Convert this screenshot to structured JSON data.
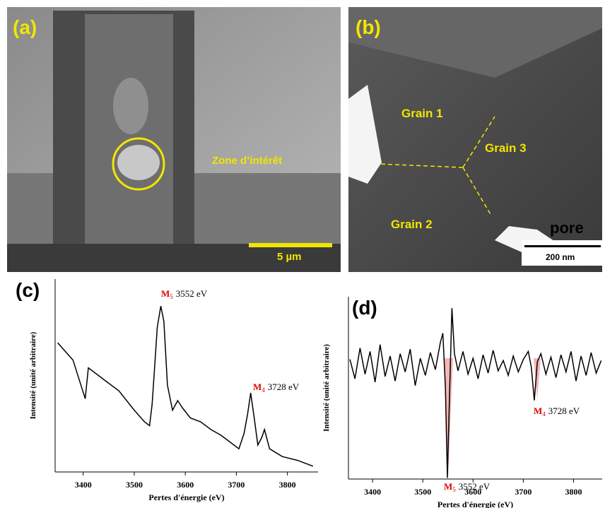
{
  "images": [
    {
      "label": "(a)",
      "annotations": [
        "Zone d’intérêt",
        "5 µm"
      ]
    },
    {
      "label": "(b)",
      "annotations": [
        "Grain 1",
        "Grain 3",
        "Grain 2",
        "pore",
        "200 nm"
      ]
    }
  ],
  "chart_data": [
    {
      "type": "line",
      "label": "(c)",
      "x_label": "Pertes d'énergie (eV)",
      "y_label": "Intensité (unité arbitraire)",
      "xlim": [
        3345,
        3860
      ],
      "xticks": [
        3400,
        3500,
        3600,
        3700,
        3800
      ],
      "ylim": [
        0,
        100
      ],
      "color": "#000000",
      "x": [
        3350,
        3380,
        3404,
        3410,
        3440,
        3470,
        3500,
        3520,
        3530,
        3535,
        3540,
        3545,
        3552,
        3558,
        3565,
        3575,
        3585,
        3595,
        3610,
        3630,
        3650,
        3670,
        3690,
        3705,
        3715,
        3722,
        3728,
        3735,
        3742,
        3750,
        3755,
        3765,
        3790,
        3820,
        3850
      ],
      "values": [
        67,
        58,
        38,
        54,
        48,
        42,
        32,
        26,
        24,
        35,
        55,
        75,
        86,
        78,
        45,
        32,
        37,
        33,
        28,
        26,
        22,
        19,
        15,
        12,
        20,
        30,
        41,
        28,
        14,
        18,
        22,
        12,
        8,
        6,
        3
      ],
      "annotations": [
        {
          "label": "M",
          "subscript": "5",
          "text": "3552 eV"
        },
        {
          "label": "M",
          "subscript": "4",
          "text": "3728 eV"
        }
      ]
    },
    {
      "type": "line",
      "label": "(d)",
      "x_label": "Pertes d'énergie (eV)",
      "y_label": "Intensité (unité arbitraire)",
      "xlim": [
        3352,
        3857
      ],
      "xticks": [
        3400,
        3500,
        3600,
        3700,
        3800
      ],
      "ylim": [
        -100,
        60
      ],
      "color": "#000000",
      "x": [
        3355,
        3365,
        3375,
        3385,
        3395,
        3405,
        3415,
        3425,
        3435,
        3445,
        3455,
        3465,
        3475,
        3485,
        3495,
        3505,
        3515,
        3525,
        3535,
        3540,
        3545,
        3549,
        3553,
        3558,
        3563,
        3570,
        3580,
        3590,
        3600,
        3610,
        3620,
        3630,
        3640,
        3650,
        3660,
        3670,
        3680,
        3690,
        3700,
        3710,
        3716,
        3722,
        3728,
        3735,
        3745,
        3755,
        3765,
        3775,
        3785,
        3795,
        3805,
        3815,
        3825,
        3835,
        3845,
        3855
      ],
      "values": [
        5,
        -12,
        15,
        -8,
        12,
        -15,
        18,
        -10,
        8,
        -14,
        10,
        -6,
        14,
        -18,
        6,
        -9,
        11,
        -4,
        20,
        28,
        -20,
        -99,
        -30,
        50,
        10,
        -5,
        12,
        -8,
        6,
        -12,
        9,
        -7,
        13,
        -5,
        4,
        -9,
        8,
        -6,
        5,
        12,
        -2,
        -31,
        3,
        10,
        -8,
        7,
        -11,
        9,
        -6,
        12,
        -14,
        8,
        -9,
        11,
        -7,
        4
      ],
      "annotations": [
        {
          "label": "M",
          "subscript": "4",
          "text": "3728 eV"
        },
        {
          "label": "M",
          "subscript": "5",
          "text": "3552 eV"
        }
      ]
    }
  ]
}
